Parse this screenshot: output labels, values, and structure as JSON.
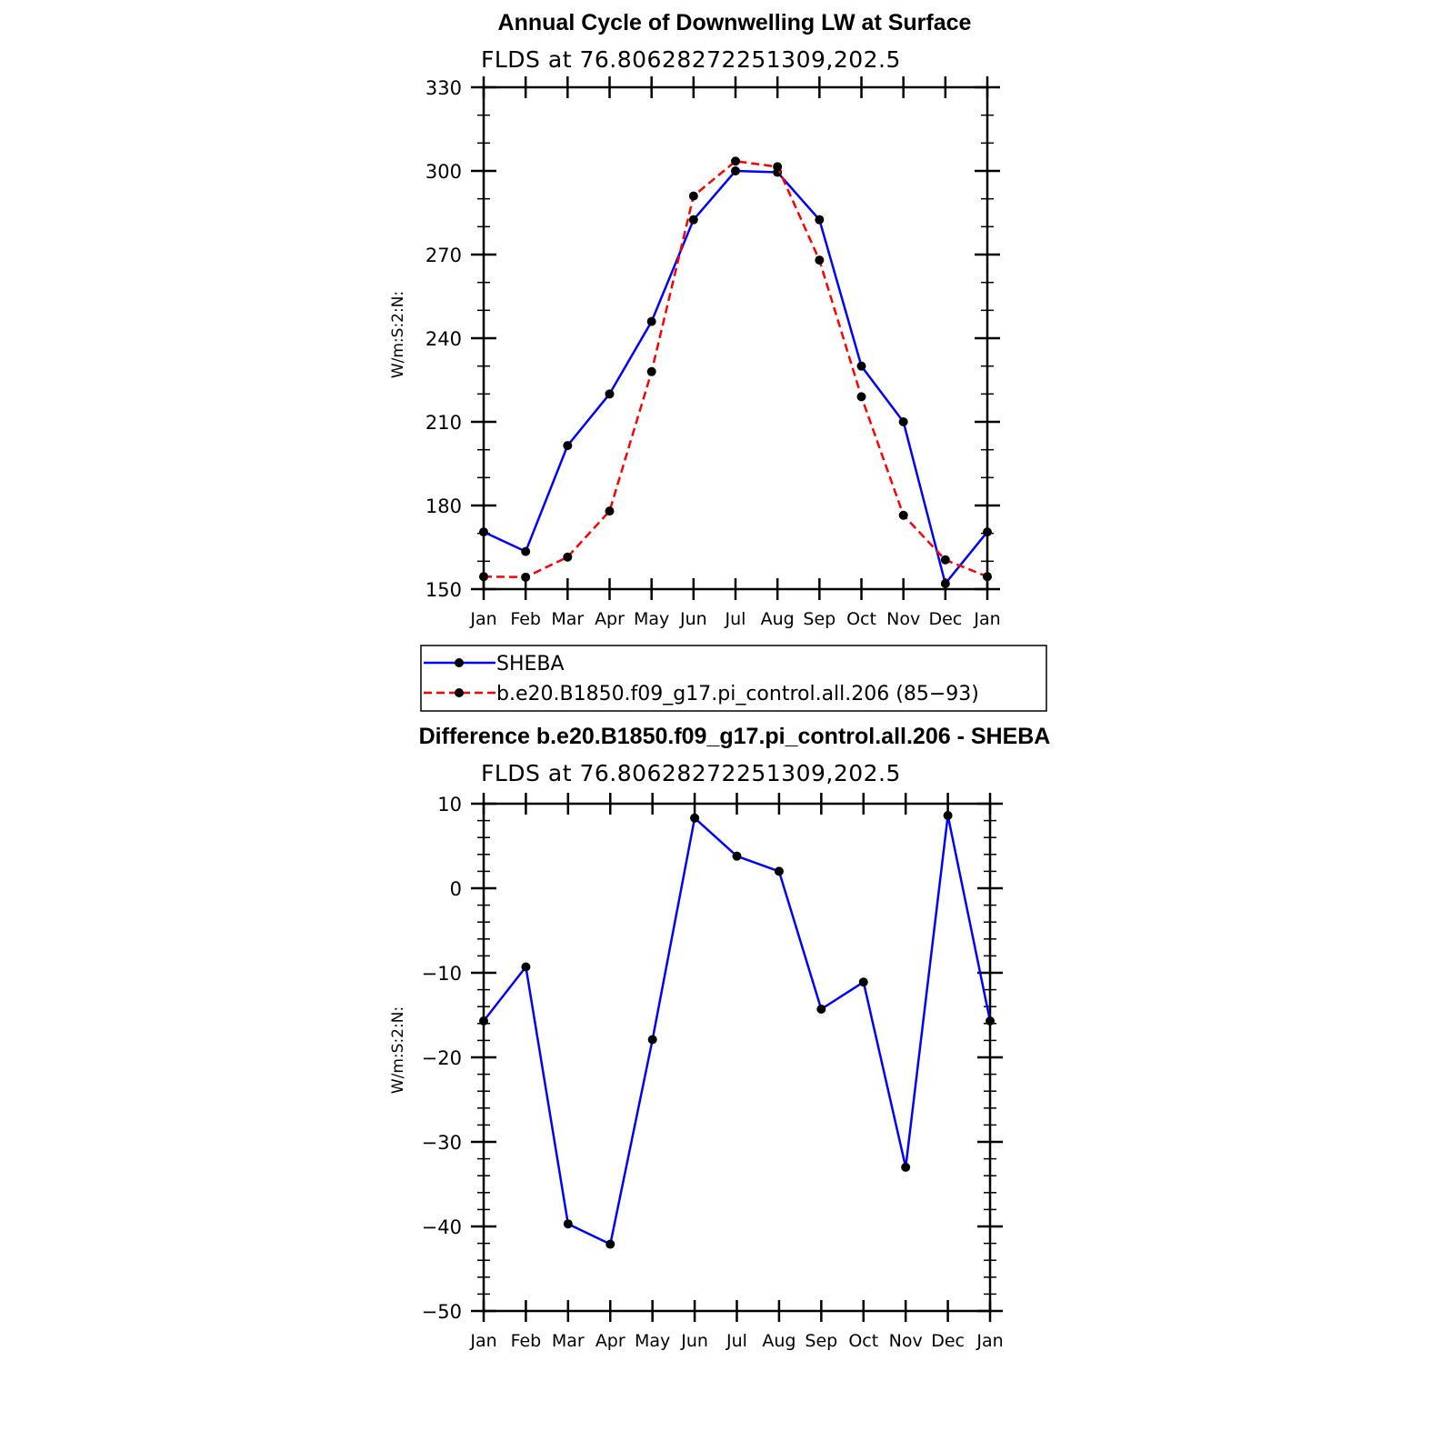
{
  "chart_data": [
    {
      "type": "line",
      "title": "Annual Cycle of Downwelling LW at Surface",
      "subtitle": "FLDS at 76.80628272251309,202.5",
      "xlabel": "",
      "ylabel": "W/m:S:2:N:",
      "categories": [
        "Jan",
        "Feb",
        "Mar",
        "Apr",
        "May",
        "Jun",
        "Jul",
        "Aug",
        "Sep",
        "Oct",
        "Nov",
        "Dec",
        "Jan"
      ],
      "ylim": [
        150,
        330
      ],
      "yticks": [
        "150",
        "180",
        "210",
        "240",
        "270",
        "300",
        "330"
      ],
      "grid": false,
      "legend_position": "below",
      "series": [
        {
          "name": "SHEBA",
          "color": "#0000ff",
          "dash": "solid",
          "values": [
            170.5,
            163.5,
            201.5,
            220,
            246,
            282.5,
            300,
            299.5,
            282.5,
            230,
            210,
            152,
            170.5
          ]
        },
        {
          "name": "b.e20.B1850.f09_g17.pi_control.all.206 (85−93)",
          "color": "#ff0000",
          "dash": "dashed",
          "values": [
            154.5,
            154.3,
            161.5,
            178,
            228,
            291,
            303.5,
            301.5,
            268,
            219,
            176.5,
            160.5,
            154.5
          ]
        }
      ]
    },
    {
      "type": "line",
      "title": "Difference b.e20.B1850.f09_g17.pi_control.all.206 - SHEBA",
      "subtitle": "FLDS at 76.80628272251309,202.5",
      "xlabel": "",
      "ylabel": "W/m:S:2:N:",
      "categories": [
        "Jan",
        "Feb",
        "Mar",
        "Apr",
        "May",
        "Jun",
        "Jul",
        "Aug",
        "Sep",
        "Oct",
        "Nov",
        "Dec",
        "Jan"
      ],
      "ylim": [
        -50,
        10
      ],
      "yticks": [
        "−50",
        "−40",
        "−30",
        "−20",
        "−10",
        "0",
        "10"
      ],
      "grid": false,
      "series": [
        {
          "color": "#0000ff",
          "dash": "solid",
          "values": [
            -15.7,
            -9.3,
            -39.7,
            -42.1,
            -17.9,
            8.3,
            3.8,
            2.0,
            -14.3,
            -11.1,
            -33.0,
            8.6,
            -15.7
          ]
        }
      ]
    }
  ]
}
